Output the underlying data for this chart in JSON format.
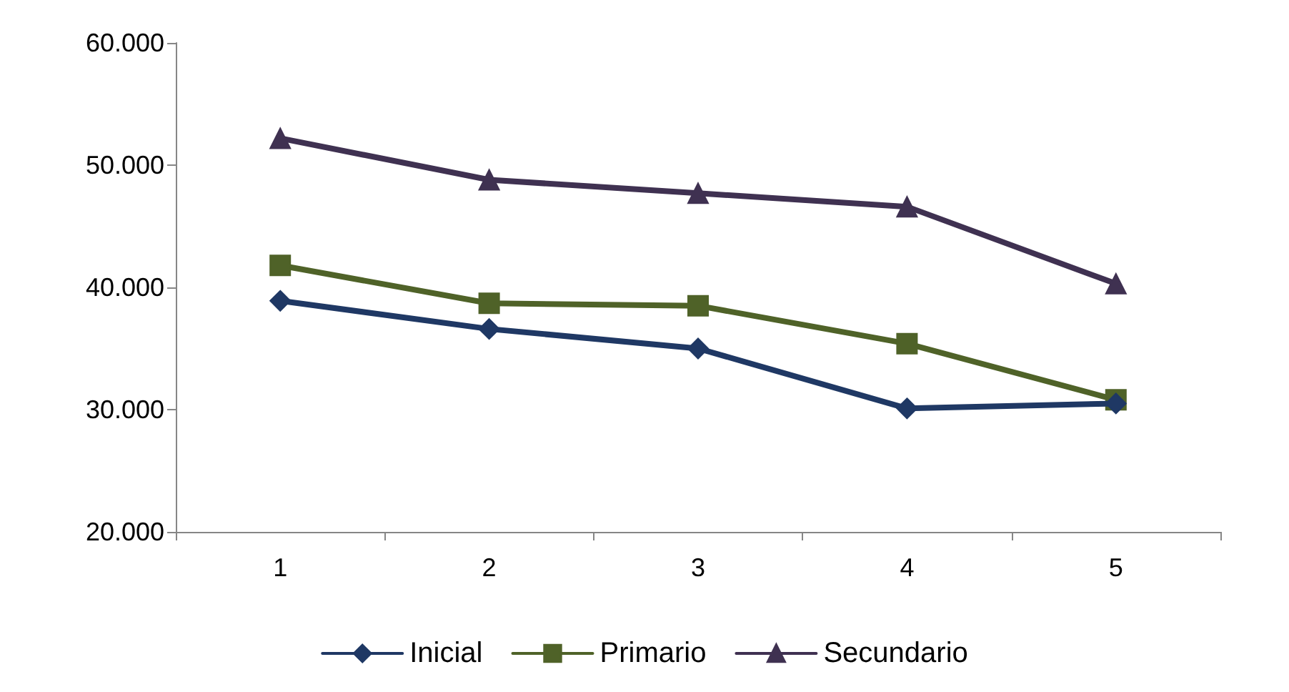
{
  "chart_data": {
    "type": "line",
    "categories": [
      "1",
      "2",
      "3",
      "4",
      "5"
    ],
    "series": [
      {
        "name": "Inicial",
        "color": "#1f3864",
        "marker": "diamond",
        "values": [
          38900,
          36600,
          35000,
          30100,
          30500
        ]
      },
      {
        "name": "Primario",
        "color": "#4f6228",
        "marker": "square",
        "values": [
          41800,
          38700,
          38500,
          35400,
          30800
        ]
      },
      {
        "name": "Secundario",
        "color": "#3f3151",
        "marker": "triangle",
        "values": [
          52200,
          48800,
          47700,
          46600,
          40300
        ]
      }
    ],
    "ylim": [
      20000,
      60000
    ],
    "yticks": [
      {
        "value": 20000,
        "label": "20.000"
      },
      {
        "value": 30000,
        "label": "30.000"
      },
      {
        "value": 40000,
        "label": "40.000"
      },
      {
        "value": 50000,
        "label": "50.000"
      },
      {
        "value": 60000,
        "label": "60.000"
      }
    ],
    "grid": false,
    "legend": "bottom",
    "line_style": "solid"
  }
}
